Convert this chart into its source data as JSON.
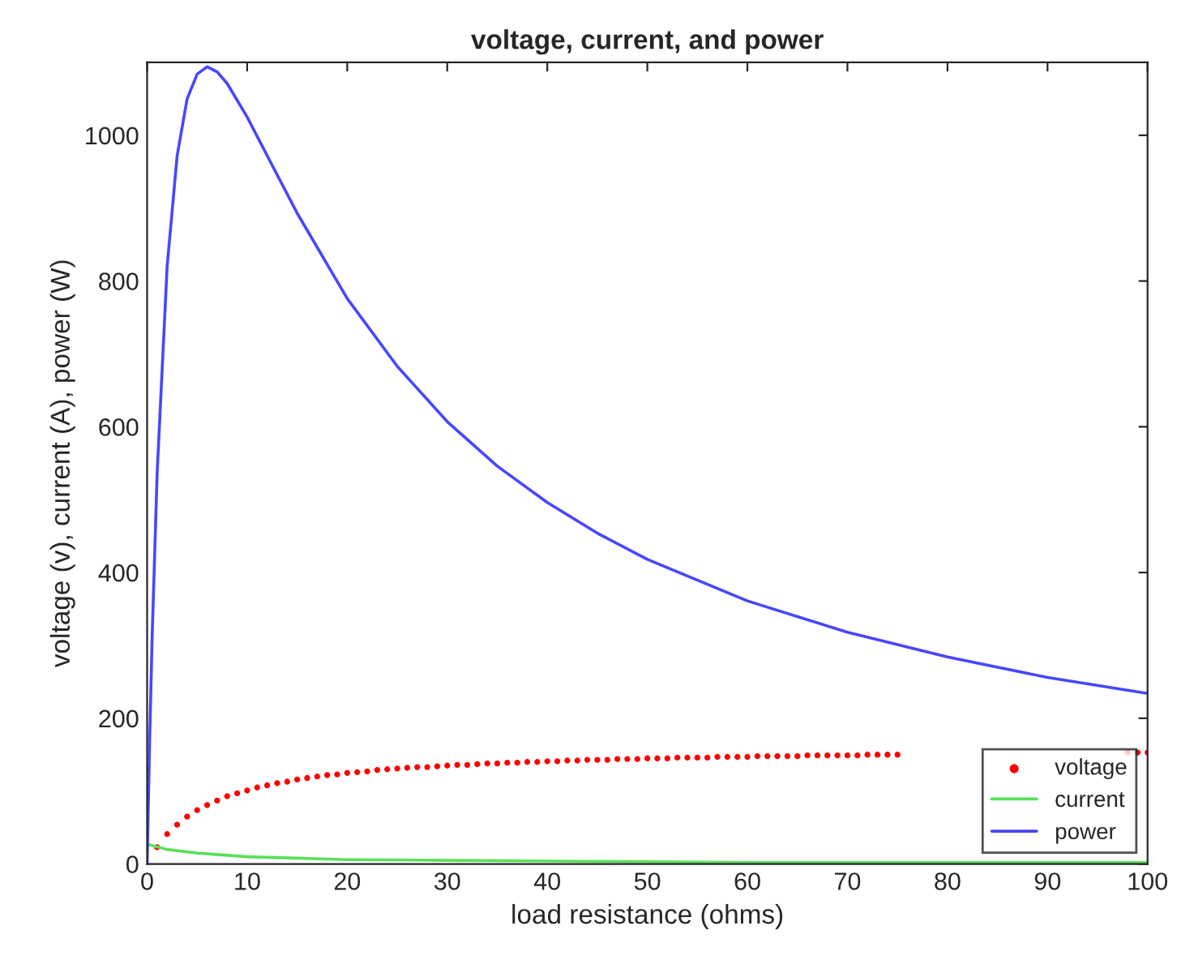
{
  "chart_data": {
    "type": "line",
    "title": "voltage, current, and power",
    "xlabel": "load resistance (ohms)",
    "ylabel": "voltage (v), current (A), power (W)",
    "xlim": [
      0,
      100
    ],
    "ylim": [
      0,
      1100
    ],
    "xticks": [
      0,
      10,
      20,
      30,
      40,
      50,
      60,
      70,
      80,
      90,
      100
    ],
    "yticks": [
      0,
      200,
      400,
      600,
      800,
      1000
    ],
    "grid": false,
    "legend": "bottom right",
    "series": [
      {
        "name": "voltage",
        "type": "scatter",
        "marker": "circle",
        "color": "#ff0000",
        "x": [
          1,
          2,
          3,
          4,
          5,
          6,
          7,
          8,
          9,
          10,
          11,
          12,
          13,
          14,
          15,
          16,
          17,
          18,
          19,
          20,
          21,
          22,
          23,
          24,
          25,
          26,
          27,
          28,
          29,
          30,
          31,
          32,
          33,
          34,
          35,
          36,
          37,
          38,
          39,
          40,
          41,
          42,
          43,
          44,
          45,
          46,
          47,
          48,
          49,
          50,
          51,
          52,
          53,
          54,
          55,
          56,
          57,
          58,
          59,
          60,
          61,
          62,
          63,
          64,
          65,
          66,
          67,
          68,
          69,
          70,
          71,
          72,
          73,
          74,
          75,
          76,
          77,
          78,
          79,
          80,
          81,
          82,
          83,
          84,
          85,
          86,
          87,
          88,
          89,
          90,
          91,
          92,
          93,
          94,
          95,
          96,
          97,
          98,
          99,
          100
        ],
        "values": [
          23,
          41,
          54,
          65,
          74,
          81,
          87,
          93,
          97,
          101,
          105,
          108,
          111,
          113,
          116,
          118,
          120,
          122,
          123,
          125,
          126,
          127,
          129,
          130,
          131,
          132,
          133,
          133,
          134,
          135,
          136,
          136,
          137,
          138,
          138,
          139,
          139,
          140,
          140,
          141,
          141,
          142,
          142,
          143,
          143,
          143,
          144,
          144,
          144,
          145,
          145,
          145,
          146,
          146,
          146,
          146,
          147,
          147,
          147,
          147,
          148,
          148,
          148,
          148,
          148,
          149,
          149,
          149,
          149,
          149,
          149,
          150,
          150,
          150,
          150,
          null,
          null,
          null,
          null,
          null,
          null,
          null,
          null,
          null,
          null,
          null,
          null,
          null,
          null,
          null,
          null,
          null,
          null,
          null,
          null,
          null,
          null,
          153,
          153,
          153
        ]
      },
      {
        "name": "current",
        "color": "#5be05b",
        "x": [
          0,
          2,
          5,
          10,
          15,
          20,
          30,
          40,
          50,
          60,
          70,
          80,
          90,
          100
        ],
        "values": [
          27,
          20,
          15,
          10,
          8,
          6,
          5,
          4,
          3,
          2,
          2,
          2,
          2,
          2
        ]
      },
      {
        "name": "power",
        "color": "#4747ff",
        "x": [
          0,
          0.25,
          0.5,
          1,
          2,
          3,
          4,
          5,
          6,
          7,
          8,
          10,
          12,
          15,
          20,
          25,
          30,
          35,
          40,
          45,
          50,
          60,
          70,
          80,
          90,
          100
        ],
        "values": [
          0,
          168,
          311,
          536,
          820,
          972,
          1050,
          1084,
          1094,
          1087,
          1071,
          1025,
          972,
          893,
          776,
          683,
          607,
          546,
          496,
          454,
          418,
          361,
          318,
          284,
          256,
          234
        ]
      }
    ]
  }
}
